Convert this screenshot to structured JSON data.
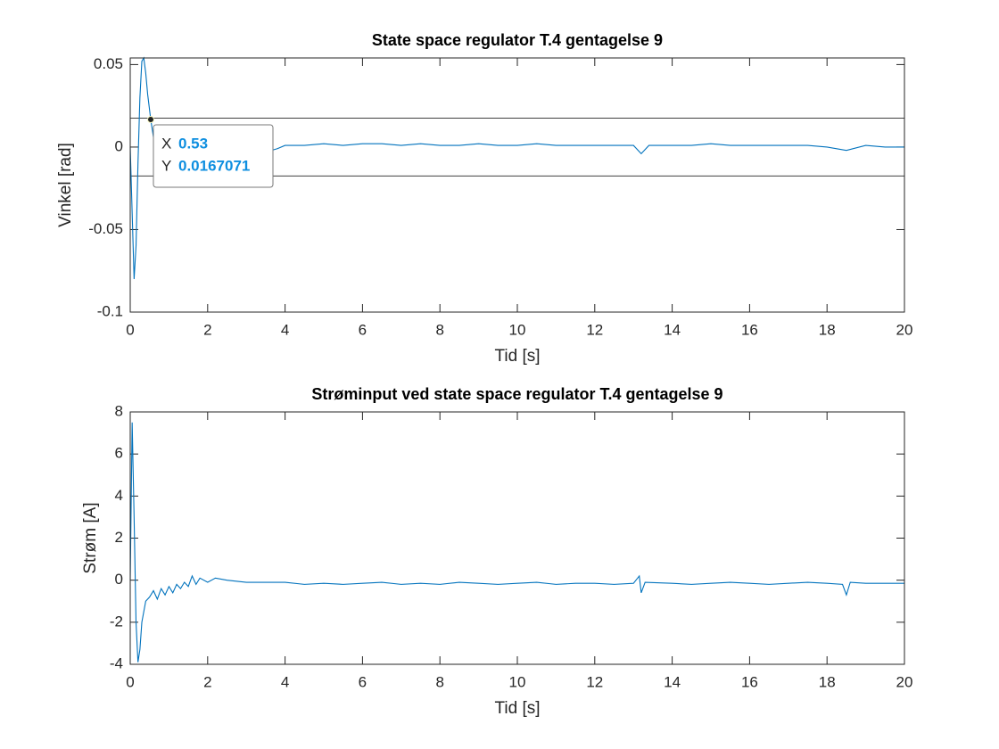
{
  "chart_data": [
    {
      "type": "line",
      "title": "State space regulator T.4 gentagelse 9",
      "xlabel": "Tid [s]",
      "ylabel": "Vinkel [rad]",
      "color": "#0072bd",
      "x": [
        0,
        0.05,
        0.1,
        0.15,
        0.2,
        0.25,
        0.3,
        0.35,
        0.4,
        0.45,
        0.53,
        0.6,
        0.7,
        0.8,
        0.9,
        1.0,
        1.2,
        1.4,
        1.6,
        1.8,
        2.0,
        2.5,
        3.0,
        3.5,
        3.8,
        4.0,
        4.5,
        5,
        5.5,
        6,
        6.5,
        7,
        7.5,
        8,
        8.5,
        9,
        9.5,
        10,
        10.5,
        11,
        11.5,
        12,
        12.5,
        13,
        13.2,
        13.4,
        14,
        14.5,
        15,
        15.5,
        16,
        16.5,
        17,
        17.5,
        18,
        18.5,
        19,
        19.5,
        20
      ],
      "values": [
        0,
        -0.04,
        -0.08,
        -0.06,
        -0.01,
        0.03,
        0.052,
        0.054,
        0.045,
        0.032,
        0.0167,
        0.006,
        -0.003,
        -0.006,
        -0.006,
        -0.005,
        -0.004,
        -0.003,
        -0.003,
        -0.004,
        -0.003,
        -0.003,
        -0.003,
        -0.003,
        -0.001,
        0.001,
        0.001,
        0.002,
        0.001,
        0.002,
        0.002,
        0.001,
        0.002,
        0.001,
        0.001,
        0.002,
        0.001,
        0.001,
        0.002,
        0.001,
        0.001,
        0.001,
        0.001,
        0.001,
        -0.004,
        0.001,
        0.001,
        0.001,
        0.002,
        0.001,
        0.001,
        0.001,
        0.001,
        0.001,
        0,
        -0.002,
        0.001,
        0,
        0
      ],
      "hlines": [
        0.0175,
        -0.0175
      ],
      "hline_color": "#404040",
      "datatip": {
        "x_label": "X",
        "x": 0.53,
        "y_label": "Y",
        "y": 0.0167071
      },
      "xlim": [
        0,
        20
      ],
      "xticks": [
        0,
        2,
        4,
        6,
        8,
        10,
        12,
        14,
        16,
        18,
        20
      ],
      "ylim": [
        -0.1,
        0.054
      ],
      "yticks": [
        -0.1,
        -0.05,
        0,
        0.05
      ]
    },
    {
      "type": "line",
      "title": "Strøminput ved state space regulator T.4 gentagelse 9",
      "xlabel": "Tid [s]",
      "ylabel": "Strøm [A]",
      "color": "#0072bd",
      "x": [
        0,
        0.05,
        0.1,
        0.15,
        0.2,
        0.25,
        0.3,
        0.4,
        0.5,
        0.6,
        0.7,
        0.8,
        0.9,
        1.0,
        1.1,
        1.2,
        1.3,
        1.4,
        1.5,
        1.6,
        1.7,
        1.8,
        2.0,
        2.2,
        2.5,
        3,
        3.5,
        4,
        4.5,
        5,
        5.5,
        6,
        6.5,
        7,
        7.5,
        8,
        8.5,
        9,
        9.5,
        10,
        10.5,
        11,
        11.5,
        12,
        12.5,
        13,
        13.15,
        13.2,
        13.3,
        14,
        14.5,
        15,
        15.5,
        16,
        16.5,
        17,
        17.5,
        18,
        18.4,
        18.5,
        18.6,
        19,
        19.5,
        20
      ],
      "values": [
        0,
        7.5,
        3,
        -2,
        -3.9,
        -3.3,
        -2,
        -1,
        -0.8,
        -0.5,
        -0.9,
        -0.4,
        -0.7,
        -0.3,
        -0.6,
        -0.2,
        -0.4,
        -0.1,
        -0.3,
        0.2,
        -0.2,
        0.1,
        -0.1,
        0.1,
        0,
        -0.1,
        -0.1,
        -0.1,
        -0.2,
        -0.15,
        -0.2,
        -0.15,
        -0.1,
        -0.2,
        -0.15,
        -0.2,
        -0.1,
        -0.15,
        -0.2,
        -0.15,
        -0.1,
        -0.2,
        -0.15,
        -0.15,
        -0.2,
        -0.15,
        0.2,
        -0.6,
        -0.1,
        -0.15,
        -0.2,
        -0.15,
        -0.1,
        -0.15,
        -0.2,
        -0.15,
        -0.1,
        -0.15,
        -0.2,
        -0.7,
        -0.1,
        -0.15,
        -0.15,
        -0.15
      ],
      "xlim": [
        0,
        20
      ],
      "xticks": [
        0,
        2,
        4,
        6,
        8,
        10,
        12,
        14,
        16,
        18,
        20
      ],
      "ylim": [
        -4,
        8
      ],
      "yticks": [
        -4,
        -2,
        0,
        2,
        4,
        6,
        8
      ]
    }
  ]
}
